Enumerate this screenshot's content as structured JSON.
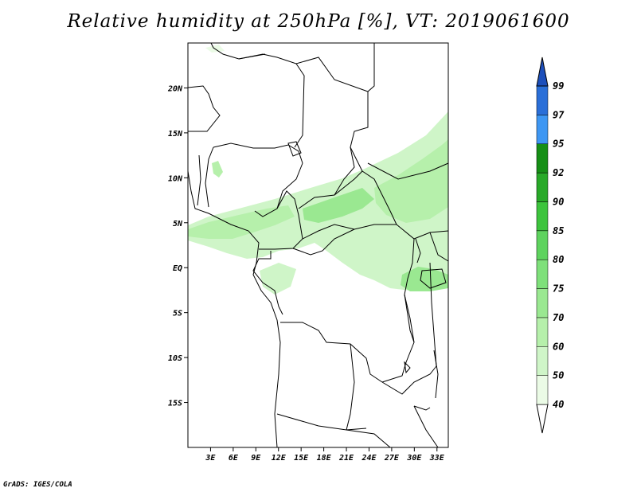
{
  "title": "Relative humidity at 250hPa [%], VT: 2019061600",
  "credit": "GrADS: IGES/COLA",
  "chart_data": {
    "type": "heatmap",
    "variable": "Relative humidity",
    "level": "250hPa",
    "units": "%",
    "valid_time": "2019061600",
    "lon_range": [
      0,
      34.5
    ],
    "lat_range": [
      -20,
      25
    ],
    "x_ticks": [
      "3E",
      "6E",
      "9E",
      "12E",
      "15E",
      "18E",
      "21E",
      "24E",
      "27E",
      "30E",
      "33E"
    ],
    "x_tick_values": [
      3,
      6,
      9,
      12,
      15,
      18,
      21,
      24,
      27,
      30,
      33
    ],
    "y_ticks": [
      "20N",
      "15N",
      "10N",
      "5N",
      "EQ",
      "5S",
      "10S",
      "15S"
    ],
    "y_tick_values": [
      20,
      15,
      10,
      5,
      0,
      -5,
      -10,
      -15
    ],
    "colorbar": {
      "levels": [
        40,
        50,
        60,
        70,
        75,
        80,
        85,
        90,
        92,
        95,
        97,
        99
      ],
      "colors": [
        "#ebfbe6",
        "#cff5c8",
        "#b6f0ab",
        "#9ae891",
        "#7ee07a",
        "#5ed35e",
        "#3dc43d",
        "#28a928",
        "#168f16",
        "#3e97f3",
        "#2a6fd8",
        "#1c4fbb"
      ]
    }
  }
}
